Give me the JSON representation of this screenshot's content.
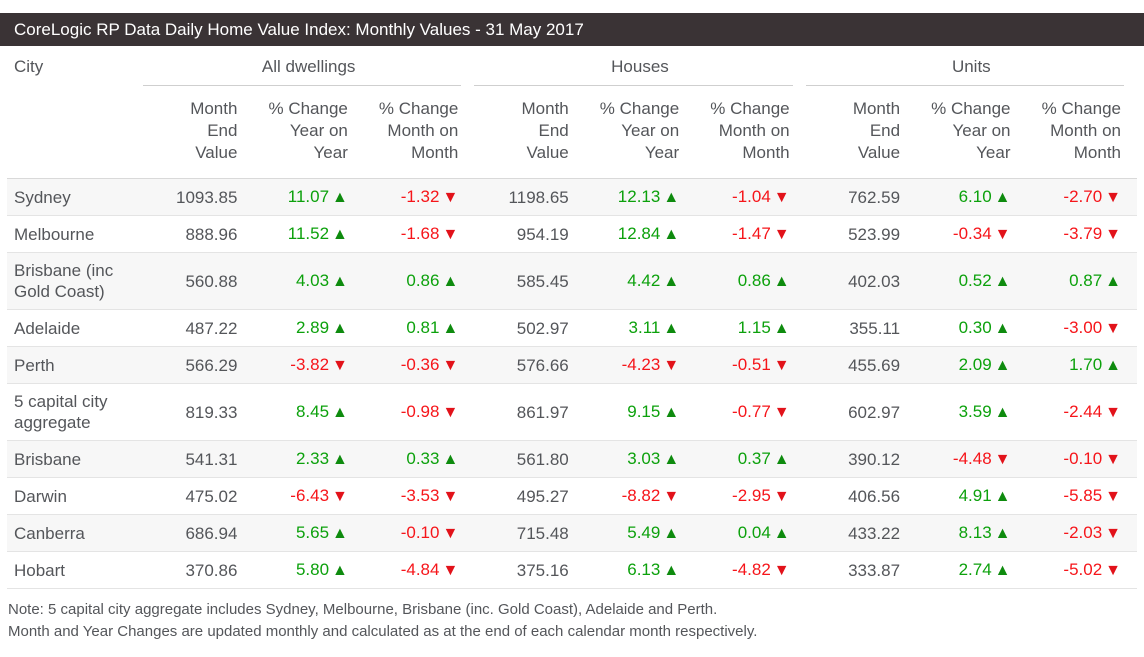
{
  "title_bar": {
    "title": "CoreLogic RP Data Daily Home Value Index: Monthly Values - 31 May 2017"
  },
  "table": {
    "city_header": "City",
    "groups": [
      {
        "label": "All dwellings"
      },
      {
        "label": "Houses"
      },
      {
        "label": "Units"
      }
    ],
    "sub_headers": [
      "Month\nEnd\nValue",
      "% Change\nYear on\nYear",
      "% Change\nMonth on\nMonth"
    ],
    "rows": [
      {
        "city": "Sydney",
        "all_dwellings": {
          "month_end_value": "1093.85",
          "yoy": {
            "value": "11.07",
            "dir": "up"
          },
          "mom": {
            "value": "-1.32",
            "dir": "down"
          }
        },
        "houses": {
          "month_end_value": "1198.65",
          "yoy": {
            "value": "12.13",
            "dir": "up"
          },
          "mom": {
            "value": "-1.04",
            "dir": "down"
          }
        },
        "units": {
          "month_end_value": "762.59",
          "yoy": {
            "value": "6.10",
            "dir": "up"
          },
          "mom": {
            "value": "-2.70",
            "dir": "down"
          }
        }
      },
      {
        "city": "Melbourne",
        "all_dwellings": {
          "month_end_value": "888.96",
          "yoy": {
            "value": "11.52",
            "dir": "up"
          },
          "mom": {
            "value": "-1.68",
            "dir": "down"
          }
        },
        "houses": {
          "month_end_value": "954.19",
          "yoy": {
            "value": "12.84",
            "dir": "up"
          },
          "mom": {
            "value": "-1.47",
            "dir": "down"
          }
        },
        "units": {
          "month_end_value": "523.99",
          "yoy": {
            "value": "-0.34",
            "dir": "down"
          },
          "mom": {
            "value": "-3.79",
            "dir": "down"
          }
        }
      },
      {
        "city": "Brisbane (inc Gold Coast)",
        "all_dwellings": {
          "month_end_value": "560.88",
          "yoy": {
            "value": "4.03",
            "dir": "up"
          },
          "mom": {
            "value": "0.86",
            "dir": "up"
          }
        },
        "houses": {
          "month_end_value": "585.45",
          "yoy": {
            "value": "4.42",
            "dir": "up"
          },
          "mom": {
            "value": "0.86",
            "dir": "up"
          }
        },
        "units": {
          "month_end_value": "402.03",
          "yoy": {
            "value": "0.52",
            "dir": "up"
          },
          "mom": {
            "value": "0.87",
            "dir": "up"
          }
        }
      },
      {
        "city": "Adelaide",
        "all_dwellings": {
          "month_end_value": "487.22",
          "yoy": {
            "value": "2.89",
            "dir": "up"
          },
          "mom": {
            "value": "0.81",
            "dir": "up"
          }
        },
        "houses": {
          "month_end_value": "502.97",
          "yoy": {
            "value": "3.11",
            "dir": "up"
          },
          "mom": {
            "value": "1.15",
            "dir": "up"
          }
        },
        "units": {
          "month_end_value": "355.11",
          "yoy": {
            "value": "0.30",
            "dir": "up"
          },
          "mom": {
            "value": "-3.00",
            "dir": "down"
          }
        }
      },
      {
        "city": "Perth",
        "all_dwellings": {
          "month_end_value": "566.29",
          "yoy": {
            "value": "-3.82",
            "dir": "down"
          },
          "mom": {
            "value": "-0.36",
            "dir": "down"
          }
        },
        "houses": {
          "month_end_value": "576.66",
          "yoy": {
            "value": "-4.23",
            "dir": "down"
          },
          "mom": {
            "value": "-0.51",
            "dir": "down"
          }
        },
        "units": {
          "month_end_value": "455.69",
          "yoy": {
            "value": "2.09",
            "dir": "up"
          },
          "mom": {
            "value": "1.70",
            "dir": "up"
          }
        }
      },
      {
        "city": "5 capital city aggregate",
        "all_dwellings": {
          "month_end_value": "819.33",
          "yoy": {
            "value": "8.45",
            "dir": "up"
          },
          "mom": {
            "value": "-0.98",
            "dir": "down"
          }
        },
        "houses": {
          "month_end_value": "861.97",
          "yoy": {
            "value": "9.15",
            "dir": "up"
          },
          "mom": {
            "value": "-0.77",
            "dir": "down"
          }
        },
        "units": {
          "month_end_value": "602.97",
          "yoy": {
            "value": "3.59",
            "dir": "up"
          },
          "mom": {
            "value": "-2.44",
            "dir": "down"
          }
        }
      },
      {
        "city": "Brisbane",
        "all_dwellings": {
          "month_end_value": "541.31",
          "yoy": {
            "value": "2.33",
            "dir": "up"
          },
          "mom": {
            "value": "0.33",
            "dir": "up"
          }
        },
        "houses": {
          "month_end_value": "561.80",
          "yoy": {
            "value": "3.03",
            "dir": "up"
          },
          "mom": {
            "value": "0.37",
            "dir": "up"
          }
        },
        "units": {
          "month_end_value": "390.12",
          "yoy": {
            "value": "-4.48",
            "dir": "down"
          },
          "mom": {
            "value": "-0.10",
            "dir": "down"
          }
        }
      },
      {
        "city": "Darwin",
        "all_dwellings": {
          "month_end_value": "475.02",
          "yoy": {
            "value": "-6.43",
            "dir": "down"
          },
          "mom": {
            "value": "-3.53",
            "dir": "down"
          }
        },
        "houses": {
          "month_end_value": "495.27",
          "yoy": {
            "value": "-8.82",
            "dir": "down"
          },
          "mom": {
            "value": "-2.95",
            "dir": "down"
          }
        },
        "units": {
          "month_end_value": "406.56",
          "yoy": {
            "value": "4.91",
            "dir": "up"
          },
          "mom": {
            "value": "-5.85",
            "dir": "down"
          }
        }
      },
      {
        "city": "Canberra",
        "all_dwellings": {
          "month_end_value": "686.94",
          "yoy": {
            "value": "5.65",
            "dir": "up"
          },
          "mom": {
            "value": "-0.10",
            "dir": "down"
          }
        },
        "houses": {
          "month_end_value": "715.48",
          "yoy": {
            "value": "5.49",
            "dir": "up"
          },
          "mom": {
            "value": "0.04",
            "dir": "up"
          }
        },
        "units": {
          "month_end_value": "433.22",
          "yoy": {
            "value": "8.13",
            "dir": "up"
          },
          "mom": {
            "value": "-2.03",
            "dir": "down"
          }
        }
      },
      {
        "city": "Hobart",
        "all_dwellings": {
          "month_end_value": "370.86",
          "yoy": {
            "value": "5.80",
            "dir": "up"
          },
          "mom": {
            "value": "-4.84",
            "dir": "down"
          }
        },
        "houses": {
          "month_end_value": "375.16",
          "yoy": {
            "value": "6.13",
            "dir": "up"
          },
          "mom": {
            "value": "-4.82",
            "dir": "down"
          }
        },
        "units": {
          "month_end_value": "333.87",
          "yoy": {
            "value": "2.74",
            "dir": "up"
          },
          "mom": {
            "value": "-5.02",
            "dir": "down"
          }
        }
      }
    ]
  },
  "notes": [
    "Note: 5 capital city aggregate includes Sydney, Melbourne, Brisbane (inc. Gold Coast), Adelaide and Perth.",
    "Month and Year Changes are updated monthly and calculated as at the end of each calendar month respectively."
  ],
  "icons": {
    "up_triangle": "▲",
    "down_triangle": "▼"
  },
  "colors": {
    "title_bar_bg": "#3a3335",
    "positive_green": "#0ca10c",
    "negative_red": "#f6151a",
    "row_stripe": "#f7f7f7",
    "body_text": "#54565a"
  },
  "chart_data": {
    "type": "table",
    "title": "CoreLogic RP Data Daily Home Value Index: Monthly Values - 31 May 2017",
    "column_groups": [
      "All dwellings",
      "Houses",
      "Units"
    ],
    "columns": [
      "City",
      "Month End Value",
      "% Change Year on Year",
      "% Change Month on Month",
      "Month End Value",
      "% Change Year on Year",
      "% Change Month on Month",
      "Month End Value",
      "% Change Year on Year",
      "% Change Month on Month"
    ],
    "rows": [
      [
        "Sydney",
        1093.85,
        11.07,
        -1.32,
        1198.65,
        12.13,
        -1.04,
        762.59,
        6.1,
        -2.7
      ],
      [
        "Melbourne",
        888.96,
        11.52,
        -1.68,
        954.19,
        12.84,
        -1.47,
        523.99,
        -0.34,
        -3.79
      ],
      [
        "Brisbane (inc Gold Coast)",
        560.88,
        4.03,
        0.86,
        585.45,
        4.42,
        0.86,
        402.03,
        0.52,
        0.87
      ],
      [
        "Adelaide",
        487.22,
        2.89,
        0.81,
        502.97,
        3.11,
        1.15,
        355.11,
        0.3,
        -3.0
      ],
      [
        "Perth",
        566.29,
        -3.82,
        -0.36,
        576.66,
        -4.23,
        -0.51,
        455.69,
        2.09,
        1.7
      ],
      [
        "5 capital city aggregate",
        819.33,
        8.45,
        -0.98,
        861.97,
        9.15,
        -0.77,
        602.97,
        3.59,
        -2.44
      ],
      [
        "Brisbane",
        541.31,
        2.33,
        0.33,
        561.8,
        3.03,
        0.37,
        390.12,
        -4.48,
        -0.1
      ],
      [
        "Darwin",
        475.02,
        -6.43,
        -3.53,
        495.27,
        -8.82,
        -2.95,
        406.56,
        4.91,
        -5.85
      ],
      [
        "Canberra",
        686.94,
        5.65,
        -0.1,
        715.48,
        5.49,
        0.04,
        433.22,
        8.13,
        -2.03
      ],
      [
        "Hobart",
        370.86,
        5.8,
        -4.84,
        375.16,
        6.13,
        -4.82,
        333.87,
        2.74,
        -5.02
      ]
    ]
  }
}
